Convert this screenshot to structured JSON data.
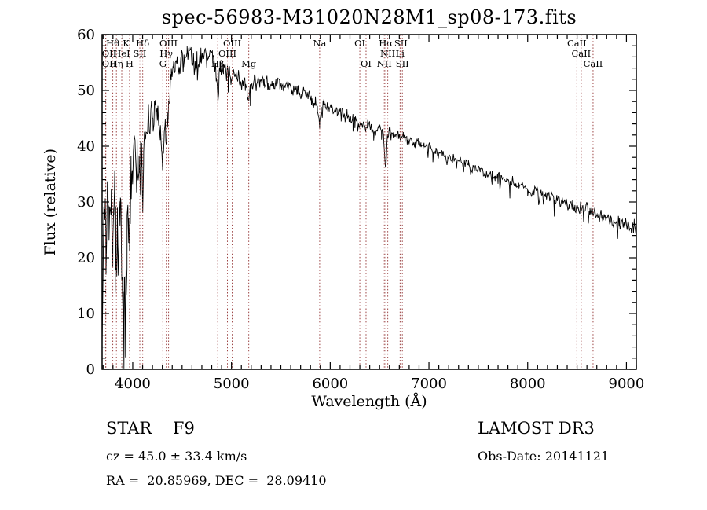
{
  "title": "spec-56983-M31020N28M1_sp08-173.fits",
  "axes": {
    "xlabel": "Wavelength (Å)",
    "ylabel": "Flux (relative)",
    "xmin": 3690,
    "xmax": 9100,
    "ymin": 0,
    "ymax": 60,
    "xticks": [
      4000,
      5000,
      6000,
      7000,
      8000,
      9000
    ],
    "yticks": [
      0,
      10,
      20,
      30,
      40,
      50,
      60
    ],
    "x_minor_step": 100,
    "y_minor_step": 2
  },
  "colors": {
    "spectrum": "#000000",
    "lines": "#9c4444",
    "frame": "#000000",
    "line_labels": "#1a1a1a"
  },
  "footer": {
    "object_type": "STAR    F9",
    "survey": "LAMOST DR3",
    "cz": "cz = 45.0 ± 33.4 km/s",
    "obs_date": "Obs-Date: 20141121",
    "coords": "RA =  20.85969, DEC =  28.09410"
  },
  "chart_data": {
    "type": "line",
    "series_name": "spectrum",
    "title": "spec-56983-M31020N28M1_sp08-173.fits",
    "xlabel": "Wavelength (Å)",
    "ylabel": "Flux (relative)",
    "xlim": [
      3690,
      9100
    ],
    "ylim": [
      0,
      60
    ],
    "grid": false,
    "envelope": [
      [
        3690,
        0
      ],
      [
        3700,
        16
      ],
      [
        3708,
        30
      ],
      [
        3715,
        24
      ],
      [
        3722,
        30
      ],
      [
        3730,
        22
      ],
      [
        3740,
        30
      ],
      [
        3750,
        33
      ],
      [
        3760,
        28
      ],
      [
        3770,
        33
      ],
      [
        3780,
        30
      ],
      [
        3790,
        26
      ],
      [
        3798,
        20
      ],
      [
        3808,
        28
      ],
      [
        3818,
        32
      ],
      [
        3828,
        24
      ],
      [
        3835,
        17
      ],
      [
        3845,
        24
      ],
      [
        3855,
        30
      ],
      [
        3865,
        26
      ],
      [
        3875,
        30
      ],
      [
        3882,
        24
      ],
      [
        3889,
        17
      ],
      [
        3896,
        13
      ],
      [
        3905,
        11
      ],
      [
        3915,
        14
      ],
      [
        3925,
        12
      ],
      [
        3933,
        15
      ],
      [
        3942,
        22
      ],
      [
        3952,
        30
      ],
      [
        3960,
        26
      ],
      [
        3968,
        22
      ],
      [
        3976,
        30
      ],
      [
        3985,
        35
      ],
      [
        3995,
        38
      ],
      [
        4005,
        36
      ],
      [
        4015,
        40
      ],
      [
        4025,
        42
      ],
      [
        4035,
        38
      ],
      [
        4045,
        41
      ],
      [
        4055,
        37
      ],
      [
        4065,
        35
      ],
      [
        4072,
        33
      ],
      [
        4080,
        37
      ],
      [
        4090,
        40
      ],
      [
        4101,
        29
      ],
      [
        4110,
        36
      ],
      [
        4120,
        41
      ],
      [
        4130,
        44
      ],
      [
        4145,
        42
      ],
      [
        4160,
        45
      ],
      [
        4175,
        44
      ],
      [
        4190,
        46
      ],
      [
        4205,
        45
      ],
      [
        4220,
        47
      ],
      [
        4235,
        46
      ],
      [
        4250,
        47
      ],
      [
        4265,
        45
      ],
      [
        4280,
        43
      ],
      [
        4292,
        40
      ],
      [
        4305,
        37
      ],
      [
        4318,
        42
      ],
      [
        4330,
        44
      ],
      [
        4340,
        41
      ],
      [
        4352,
        45
      ],
      [
        4363,
        47
      ],
      [
        4375,
        50
      ],
      [
        4390,
        52
      ],
      [
        4410,
        53
      ],
      [
        4430,
        54
      ],
      [
        4450,
        55
      ],
      [
        4470,
        54
      ],
      [
        4490,
        56
      ],
      [
        4510,
        55
      ],
      [
        4530,
        56
      ],
      [
        4550,
        57
      ],
      [
        4570,
        56
      ],
      [
        4590,
        57
      ],
      [
        4610,
        56
      ],
      [
        4630,
        55
      ],
      [
        4650,
        56
      ],
      [
        4670,
        55
      ],
      [
        4690,
        56
      ],
      [
        4710,
        57
      ],
      [
        4730,
        56
      ],
      [
        4750,
        55
      ],
      [
        4770,
        56
      ],
      [
        4790,
        57
      ],
      [
        4810,
        56
      ],
      [
        4830,
        55
      ],
      [
        4845,
        53
      ],
      [
        4861,
        48
      ],
      [
        4875,
        52
      ],
      [
        4890,
        54
      ],
      [
        4905,
        55
      ],
      [
        4920,
        54
      ],
      [
        4935,
        54
      ],
      [
        4950,
        53
      ],
      [
        4965,
        54
      ],
      [
        4980,
        53
      ],
      [
        4995,
        53
      ],
      [
        5007,
        52
      ],
      [
        5020,
        53
      ],
      [
        5040,
        52
      ],
      [
        5060,
        53
      ],
      [
        5080,
        52
      ],
      [
        5100,
        51
      ],
      [
        5120,
        52
      ],
      [
        5140,
        51
      ],
      [
        5160,
        49
      ],
      [
        5175,
        48
      ],
      [
        5190,
        50
      ],
      [
        5210,
        51
      ],
      [
        5230,
        52
      ],
      [
        5250,
        51
      ],
      [
        5270,
        52
      ],
      [
        5290,
        51
      ],
      [
        5310,
        52
      ],
      [
        5330,
        51
      ],
      [
        5350,
        52
      ],
      [
        5370,
        51
      ],
      [
        5390,
        51
      ],
      [
        5410,
        52
      ],
      [
        5430,
        51
      ],
      [
        5450,
        51
      ],
      [
        5470,
        52
      ],
      [
        5490,
        51
      ],
      [
        5510,
        51
      ],
      [
        5530,
        50
      ],
      [
        5550,
        51
      ],
      [
        5570,
        50
      ],
      [
        5590,
        51
      ],
      [
        5610,
        50
      ],
      [
        5630,
        50
      ],
      [
        5650,
        50
      ],
      [
        5670,
        50
      ],
      [
        5690,
        50
      ],
      [
        5710,
        49
      ],
      [
        5730,
        50
      ],
      [
        5750,
        49
      ],
      [
        5770,
        49
      ],
      [
        5790,
        49
      ],
      [
        5810,
        48
      ],
      [
        5830,
        48
      ],
      [
        5850,
        48
      ],
      [
        5870,
        47
      ],
      [
        5893,
        44
      ],
      [
        5910,
        47
      ],
      [
        5930,
        48
      ],
      [
        5950,
        47
      ],
      [
        5970,
        47
      ],
      [
        5990,
        47
      ],
      [
        6010,
        47
      ],
      [
        6030,
        46
      ],
      [
        6050,
        47
      ],
      [
        6070,
        46
      ],
      [
        6090,
        46
      ],
      [
        6110,
        46
      ],
      [
        6130,
        46
      ],
      [
        6150,
        45
      ],
      [
        6170,
        46
      ],
      [
        6190,
        45
      ],
      [
        6210,
        45
      ],
      [
        6230,
        45
      ],
      [
        6250,
        45
      ],
      [
        6270,
        45
      ],
      [
        6290,
        44
      ],
      [
        6300,
        44
      ],
      [
        6320,
        44
      ],
      [
        6340,
        44
      ],
      [
        6363,
        43
      ],
      [
        6380,
        44
      ],
      [
        6400,
        44
      ],
      [
        6420,
        43
      ],
      [
        6440,
        43
      ],
      [
        6460,
        43
      ],
      [
        6480,
        43
      ],
      [
        6500,
        43
      ],
      [
        6520,
        43
      ],
      [
        6540,
        42
      ],
      [
        6563,
        36
      ],
      [
        6580,
        42
      ],
      [
        6600,
        43
      ],
      [
        6620,
        42
      ],
      [
        6640,
        42
      ],
      [
        6660,
        42
      ],
      [
        6680,
        42
      ],
      [
        6700,
        42
      ],
      [
        6720,
        41
      ],
      [
        6740,
        42
      ],
      [
        6760,
        41
      ],
      [
        6780,
        41
      ],
      [
        6800,
        41
      ],
      [
        6830,
        41
      ],
      [
        6860,
        40
      ],
      [
        6890,
        41
      ],
      [
        6920,
        40
      ],
      [
        6950,
        40
      ],
      [
        6980,
        40
      ],
      [
        7010,
        40
      ],
      [
        7040,
        39
      ],
      [
        7070,
        39
      ],
      [
        7100,
        39
      ],
      [
        7130,
        39
      ],
      [
        7160,
        38
      ],
      [
        7190,
        38
      ],
      [
        7220,
        38
      ],
      [
        7250,
        38
      ],
      [
        7280,
        37
      ],
      [
        7310,
        38
      ],
      [
        7340,
        37
      ],
      [
        7370,
        37
      ],
      [
        7400,
        37
      ],
      [
        7430,
        36
      ],
      [
        7460,
        36
      ],
      [
        7490,
        36
      ],
      [
        7520,
        36
      ],
      [
        7550,
        35
      ],
      [
        7580,
        35
      ],
      [
        7610,
        35
      ],
      [
        7640,
        35
      ],
      [
        7670,
        34
      ],
      [
        7700,
        35
      ],
      [
        7730,
        34
      ],
      [
        7760,
        34
      ],
      [
        7790,
        34
      ],
      [
        7820,
        33
      ],
      [
        7850,
        34
      ],
      [
        7880,
        33
      ],
      [
        7910,
        33
      ],
      [
        7940,
        33
      ],
      [
        7970,
        33
      ],
      [
        8000,
        32
      ],
      [
        8030,
        32
      ],
      [
        8060,
        32
      ],
      [
        8090,
        32
      ],
      [
        8120,
        31
      ],
      [
        8150,
        32
      ],
      [
        8180,
        31
      ],
      [
        8210,
        31
      ],
      [
        8240,
        31
      ],
      [
        8270,
        30
      ],
      [
        8300,
        31
      ],
      [
        8330,
        30
      ],
      [
        8360,
        30
      ],
      [
        8390,
        30
      ],
      [
        8420,
        29
      ],
      [
        8450,
        30
      ],
      [
        8480,
        29
      ],
      [
        8510,
        29
      ],
      [
        8540,
        29
      ],
      [
        8570,
        28
      ],
      [
        8600,
        29
      ],
      [
        8630,
        28
      ],
      [
        8660,
        28
      ],
      [
        8690,
        28
      ],
      [
        8720,
        27
      ],
      [
        8750,
        28
      ],
      [
        8780,
        27
      ],
      [
        8810,
        27
      ],
      [
        8840,
        27
      ],
      [
        8870,
        26
      ],
      [
        8900,
        27
      ],
      [
        8930,
        26
      ],
      [
        8960,
        26
      ],
      [
        8990,
        26
      ],
      [
        9020,
        26
      ],
      [
        9050,
        25
      ],
      [
        9080,
        26
      ],
      [
        9100,
        25
      ]
    ],
    "noise": {
      "seed": 20141121,
      "step": 8,
      "spike_prob": 0.035,
      "spike_factor": 2,
      "amplitude_points": [
        [
          3690,
          5
        ],
        [
          3800,
          5.5
        ],
        [
          3900,
          5
        ],
        [
          3970,
          5
        ],
        [
          4000,
          4.5
        ],
        [
          4060,
          4
        ],
        [
          4110,
          3.5
        ],
        [
          4160,
          3
        ],
        [
          4220,
          2.6
        ],
        [
          4300,
          2.4
        ],
        [
          4400,
          2.2
        ],
        [
          4500,
          2
        ],
        [
          4700,
          1.8
        ],
        [
          4900,
          1.5
        ],
        [
          5100,
          1.3
        ],
        [
          5300,
          1.2
        ],
        [
          5600,
          1
        ],
        [
          5900,
          0.9
        ],
        [
          6200,
          0.8
        ],
        [
          6600,
          0.8
        ],
        [
          7000,
          0.7
        ],
        [
          7400,
          0.7
        ],
        [
          7800,
          0.8
        ],
        [
          8100,
          0.9
        ],
        [
          8400,
          1
        ],
        [
          8700,
          1.1
        ],
        [
          9100,
          1.2
        ]
      ]
    },
    "spectral_lines": [
      {
        "wavelength": 3727,
        "label": "OII",
        "row": 1
      },
      {
        "wavelength": 3727,
        "label": "OII",
        "row": 2
      },
      {
        "wavelength": 3798,
        "label": "Hθ",
        "row": 0
      },
      {
        "wavelength": 3835,
        "label": "Hη",
        "row": 2
      },
      {
        "wavelength": 3889,
        "label": "HeI",
        "row": 1
      },
      {
        "wavelength": 3933,
        "label": "K",
        "row": 0
      },
      {
        "wavelength": 3968,
        "label": "H",
        "row": 2
      },
      {
        "wavelength": 4072,
        "label": "SII",
        "row": 1
      },
      {
        "wavelength": 4101,
        "label": "Hδ",
        "row": 0
      },
      {
        "wavelength": 4305,
        "label": "G",
        "row": 2
      },
      {
        "wavelength": 4340,
        "label": "Hγ",
        "row": 1
      },
      {
        "wavelength": 4363,
        "label": "OIII",
        "row": 0
      },
      {
        "wavelength": 4861,
        "label": "Hβ",
        "row": 2
      },
      {
        "wavelength": 4959,
        "label": "OIII",
        "row": 1
      },
      {
        "wavelength": 5007,
        "label": "OIII",
        "row": 0
      },
      {
        "wavelength": 5175,
        "label": "Mg",
        "row": 2
      },
      {
        "wavelength": 5893,
        "label": "Na",
        "row": 0
      },
      {
        "wavelength": 6300,
        "label": "OI",
        "row": 0
      },
      {
        "wavelength": 6363,
        "label": "OI",
        "row": 2
      },
      {
        "wavelength": 6548,
        "label": "NII",
        "row": 2
      },
      {
        "wavelength": 6563,
        "label": "Hα",
        "row": 0
      },
      {
        "wavelength": 6583,
        "label": "NII",
        "row": 1
      },
      {
        "wavelength": 6708,
        "label": "Li",
        "row": 1
      },
      {
        "wavelength": 6716,
        "label": "SII",
        "row": 0
      },
      {
        "wavelength": 6731,
        "label": "SII",
        "row": 2
      },
      {
        "wavelength": 8498,
        "label": "CaII",
        "row": 0
      },
      {
        "wavelength": 8542,
        "label": "CaII",
        "row": 1
      },
      {
        "wavelength": 8662,
        "label": "CaII",
        "row": 2
      }
    ]
  }
}
